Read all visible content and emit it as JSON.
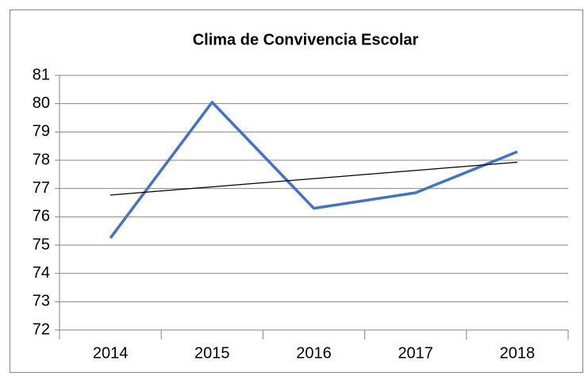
{
  "chart_data": {
    "type": "line",
    "title": "Clima de Convivencia Escolar",
    "categories": [
      "2014",
      "2015",
      "2016",
      "2017",
      "2018"
    ],
    "series": [
      {
        "color": "#4472c4",
        "values": [
          75.25,
          80.05,
          76.3,
          76.85,
          78.3
        ]
      }
    ],
    "ylim": [
      72,
      81
    ],
    "yticks": [
      72,
      73,
      74,
      75,
      76,
      77,
      78,
      79,
      80,
      81
    ],
    "grid": true,
    "trendline": "linear",
    "trendline_color": "#000000"
  }
}
